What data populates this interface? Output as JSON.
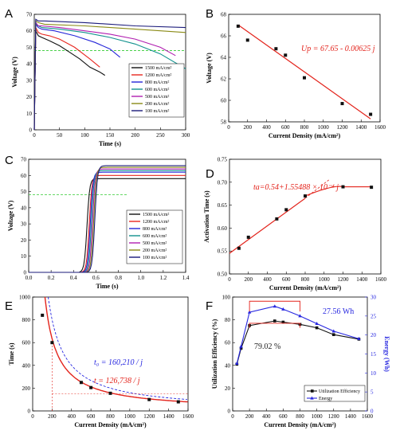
{
  "colors": {
    "s1500": "#111111",
    "s1200": "#e8261f",
    "s800": "#2525d8",
    "s600": "#12928e",
    "s500": "#b01eb0",
    "s200": "#8a8a15",
    "s100": "#1a1a7a",
    "fit": "#e3231b",
    "energy": "#2727e0",
    "ref": "#33cc33"
  },
  "panels": [
    {
      "label": "A",
      "xlabel": "Time (s)",
      "ylabel": "Voltage (V)",
      "xlim": [
        0,
        300
      ],
      "ylim": [
        0,
        70
      ],
      "xticks": [
        0,
        50,
        100,
        150,
        200,
        250,
        300
      ],
      "yticks": [
        0,
        10,
        20,
        30,
        40,
        50,
        60,
        70
      ],
      "legend": [
        "1500 mA/cm²",
        "1200 mA/cm²",
        "800 mA/cm²",
        "600 mA/cm²",
        "500 mA/cm²",
        "200 mA/cm²",
        "100 mA/cm²"
      ]
    },
    {
      "label": "B",
      "xlabel": "Current Density (mA/cm²)",
      "ylabel": "Voltage (V)",
      "xlim": [
        0,
        1600
      ],
      "ylim": [
        58,
        68
      ],
      "xticks": [
        0,
        200,
        400,
        600,
        800,
        1000,
        1200,
        1400,
        1600
      ],
      "yticks": [
        58,
        60,
        62,
        64,
        66,
        68
      ],
      "annotation": "Up = 67.65 - 0.00625 j"
    },
    {
      "label": "C",
      "xlabel": "Time (s)",
      "ylabel": "Voltage (V)",
      "xlim": [
        0,
        1.4
      ],
      "ylim": [
        0,
        70
      ],
      "xticks": [
        "0.0",
        "0.2",
        "0.4",
        "0.6",
        "0.8",
        "1.0",
        "1.2",
        "1.4"
      ],
      "yticks": [
        0,
        10,
        20,
        30,
        40,
        50,
        60,
        70
      ],
      "legend": [
        "1500 mA/cm²",
        "1200 mA/cm²",
        "800 mA/cm²",
        "600 mA/cm²",
        "500 mA/cm²",
        "200 mA/cm²",
        "100 mA/cm²"
      ]
    },
    {
      "label": "D",
      "xlabel": "Current Density (mA/cm²)",
      "ylabel": "Activation Time (s)",
      "xlim": [
        0,
        1600
      ],
      "ylim": [
        0.5,
        0.75
      ],
      "xticks": [
        0,
        200,
        400,
        600,
        800,
        1000,
        1200,
        1400,
        1600
      ],
      "yticks": [
        "0.50",
        "0.55",
        "0.60",
        "0.65",
        "0.70",
        "0.75"
      ],
      "annotation": "ta=0.54+1.55488 × 10⁻⁴ j"
    },
    {
      "label": "E",
      "xlabel": "Current Density (mA/cm²)",
      "ylabel": "Time (s)",
      "xlim": [
        0,
        1600
      ],
      "ylim": [
        0,
        1000
      ],
      "xticks": [
        0,
        200,
        400,
        600,
        800,
        1000,
        1200,
        1400,
        1600
      ],
      "yticks": [
        0,
        200,
        400,
        600,
        800,
        1000
      ],
      "annotation_blue": "t₀ = 160,210 / j",
      "annotation_red": "t = 126,738 / j"
    },
    {
      "label": "F",
      "xlabel": "Current Density (mA/cm²)",
      "ylabel": "Utilization Efficiency (%)",
      "ylabel_right": "Energy (Wh)",
      "xlim": [
        0,
        1600
      ],
      "ylim": [
        0,
        100
      ],
      "ylim_right": [
        0,
        30
      ],
      "xticks": [
        0,
        200,
        400,
        600,
        800,
        1000,
        1200,
        1400,
        1600
      ],
      "yticks": [
        0,
        20,
        40,
        60,
        80,
        100
      ],
      "yticks_right": [
        0,
        5,
        10,
        15,
        20,
        25,
        30
      ],
      "annotation_energy": "27.56 Wh",
      "annotation_eff": "79.02 %",
      "legend": [
        "Utilization Efficiency",
        "Energy"
      ]
    }
  ],
  "chart_data": [
    {
      "panel": "A",
      "type": "line",
      "series": [
        {
          "name": "1500 mA/cm²",
          "x": [
            0,
            3,
            8,
            15,
            30,
            50,
            70,
            90,
            110,
            130,
            140
          ],
          "y": [
            0,
            60,
            57,
            56,
            54,
            51,
            47,
            43,
            38,
            35,
            33
          ]
        },
        {
          "name": "1200 mA/cm²",
          "x": [
            0,
            3,
            8,
            15,
            30,
            50,
            80,
            110,
            130
          ],
          "y": [
            0,
            62,
            59,
            58,
            57,
            55,
            50,
            43,
            38
          ]
        },
        {
          "name": "800 mA/cm²",
          "x": [
            0,
            3,
            8,
            15,
            40,
            80,
            120,
            150,
            170
          ],
          "y": [
            0,
            64,
            62,
            61,
            60,
            57,
            53,
            49,
            44
          ]
        },
        {
          "name": "600 mA/cm²",
          "x": [
            0,
            3,
            8,
            15,
            50,
            100,
            150,
            200,
            250,
            300
          ],
          "y": [
            0,
            64,
            63,
            62,
            61,
            59,
            56,
            52,
            46,
            37
          ]
        },
        {
          "name": "500 mA/cm²",
          "x": [
            0,
            3,
            8,
            15,
            50,
            100,
            150,
            200,
            250,
            280
          ],
          "y": [
            0,
            65,
            63,
            63,
            62,
            60,
            58,
            55,
            50,
            45
          ]
        },
        {
          "name": "200 mA/cm²",
          "x": [
            0,
            3,
            8,
            20,
            100,
            200,
            300
          ],
          "y": [
            0,
            66,
            65,
            64,
            63,
            61,
            59
          ]
        },
        {
          "name": "100 mA/cm²",
          "x": [
            0,
            3,
            8,
            20,
            100,
            200,
            300
          ],
          "y": [
            0,
            67,
            66,
            66,
            65,
            63,
            62
          ]
        }
      ],
      "reference_line": {
        "y": 48,
        "style": "dashed"
      }
    },
    {
      "panel": "B",
      "type": "scatter",
      "points": {
        "x": [
          100,
          200,
          500,
          600,
          800,
          1200,
          1500
        ],
        "y": [
          66.9,
          65.6,
          64.8,
          64.2,
          62.1,
          59.7,
          58.7
        ]
      },
      "fit": {
        "x": [
          100,
          1500
        ],
        "y": [
          67.025,
          58.275
        ]
      }
    },
    {
      "panel": "C",
      "type": "line",
      "series": [
        {
          "name": "1500 mA/cm²",
          "onset": 0.46,
          "plateau": 58
        },
        {
          "name": "1200 mA/cm²",
          "onset": 0.48,
          "plateau": 60
        },
        {
          "name": "800 mA/cm²",
          "onset": 0.49,
          "plateau": 62
        },
        {
          "name": "600 mA/cm²",
          "onset": 0.5,
          "plateau": 63
        },
        {
          "name": "500 mA/cm²",
          "onset": 0.51,
          "plateau": 64
        },
        {
          "name": "200 mA/cm²",
          "onset": 0.52,
          "plateau": 65
        },
        {
          "name": "100 mA/cm²",
          "onset": 0.53,
          "plateau": 66
        }
      ],
      "reference_line": {
        "y": 48,
        "style": "dashed"
      }
    },
    {
      "panel": "D",
      "type": "scatter",
      "points": {
        "x": [
          100,
          200,
          500,
          600,
          800,
          1200,
          1500
        ],
        "y": [
          0.556,
          0.58,
          0.62,
          0.64,
          0.67,
          0.69,
          0.689
        ]
      },
      "fit_line": {
        "x": [
          0,
          800
        ],
        "y": [
          0.545,
          0.665
        ]
      },
      "fit_curve": {
        "x": [
          800,
          1000,
          1200,
          1500
        ],
        "y": [
          0.67,
          0.684,
          0.69,
          0.69
        ]
      }
    },
    {
      "panel": "E",
      "type": "scatter",
      "points": {
        "x": [
          100,
          200,
          500,
          600,
          800,
          1200,
          1500
        ],
        "y": [
          840,
          600,
          250,
          205,
          155,
          100,
          80
        ]
      },
      "curve_blue_k": 160210,
      "curve_red_k": 126738,
      "guide": {
        "x": 200,
        "y": 600
      }
    },
    {
      "panel": "F",
      "type": "line",
      "series": [
        {
          "name": "Utilization Efficiency",
          "x": [
            50,
            100,
            200,
            500,
            600,
            800,
            1000,
            1200,
            1500
          ],
          "y": [
            41,
            55,
            75,
            79.02,
            78,
            76,
            73,
            67,
            63
          ]
        },
        {
          "name": "Energy",
          "axis": "right",
          "x": [
            50,
            100,
            200,
            500,
            600,
            800,
            1000,
            1200,
            1500
          ],
          "y": [
            12.5,
            17,
            26,
            27.56,
            26.8,
            25,
            23,
            21,
            19
          ]
        }
      ]
    }
  ]
}
